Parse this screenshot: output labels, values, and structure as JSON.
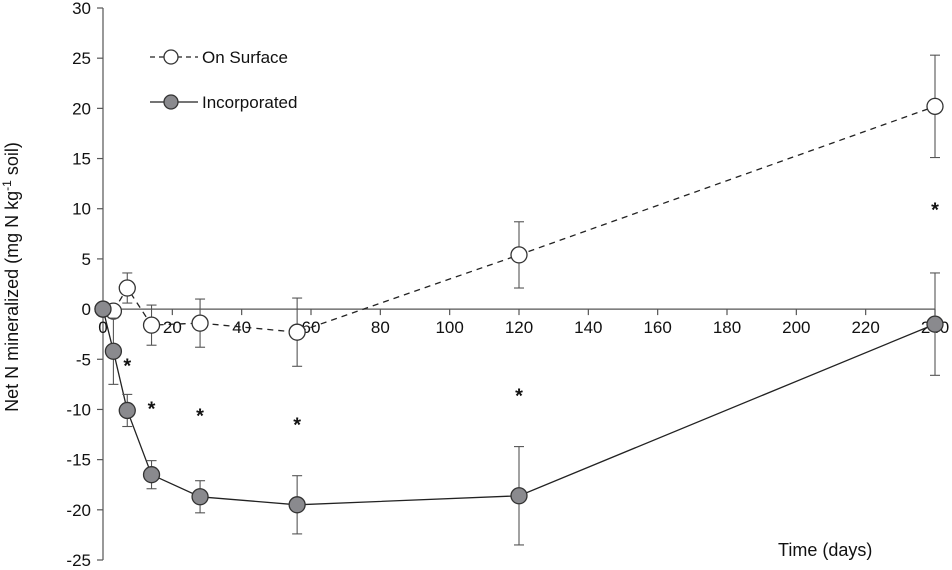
{
  "chart_data": {
    "type": "line",
    "xlabel": "Time (days)",
    "ylabel": "Net N mineralized (mg N kg-1 soil)",
    "ylabel_parts": {
      "pre": "Net N mineralized (mg N kg",
      "sup": "-1",
      "post": " soil)"
    },
    "xlim": [
      0,
      240
    ],
    "ylim": [
      -25,
      30
    ],
    "x_ticks": [
      0,
      20,
      40,
      60,
      80,
      100,
      120,
      140,
      160,
      180,
      200,
      220,
      240
    ],
    "x_tick_labels": [
      "0",
      "20",
      "40",
      "60",
      "80",
      "100",
      "120",
      "140",
      "160",
      "180",
      "200",
      "220",
      "240"
    ],
    "y_ticks": [
      -25,
      -20,
      -15,
      -10,
      -5,
      0,
      5,
      10,
      15,
      20,
      25,
      30
    ],
    "y_tick_labels": [
      "-25",
      "-20",
      "-15",
      "-10",
      "-5",
      "0",
      "5",
      "10",
      "15",
      "20",
      "25",
      "30"
    ],
    "grid": false,
    "legend_position": "top-left",
    "significance_marker": "*",
    "significance_points": [
      {
        "x": 7,
        "y": -5.5
      },
      {
        "x": 14,
        "y": -9.8
      },
      {
        "x": 28,
        "y": -10.5
      },
      {
        "x": 56,
        "y": -11.4
      },
      {
        "x": 120,
        "y": -8.5
      },
      {
        "x": 240,
        "y": 10
      }
    ],
    "series": [
      {
        "name": "On Surface",
        "line_style": "dashed",
        "marker": "open-circle",
        "color": "#222222",
        "marker_fill": "#ffffff",
        "x": [
          0,
          3,
          7,
          14,
          28,
          56,
          120,
          240
        ],
        "y": [
          0,
          -0.2,
          2.1,
          -1.6,
          -1.4,
          -2.3,
          5.4,
          20.2
        ],
        "error": [
          0,
          0,
          1.5,
          2.0,
          2.4,
          3.4,
          3.3,
          5.1
        ]
      },
      {
        "name": "Incorporated",
        "line_style": "solid",
        "marker": "filled-circle",
        "color": "#222222",
        "marker_fill": "#8a8a8e",
        "x": [
          0,
          3,
          7,
          14,
          28,
          56,
          120,
          240
        ],
        "y": [
          0,
          -4.2,
          -10.1,
          -16.5,
          -18.7,
          -19.5,
          -18.6,
          -1.5
        ],
        "error": [
          0,
          3.3,
          1.6,
          1.4,
          1.6,
          2.9,
          4.9,
          5.1
        ]
      }
    ]
  }
}
